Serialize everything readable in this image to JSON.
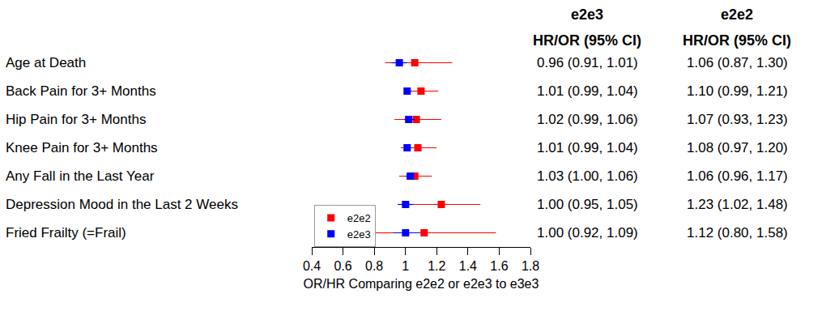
{
  "chart_data": {
    "type": "forest",
    "x_label": "OR/HR Comparing e2e2 or e2e3 to e3e3",
    "categories": [
      "Age at Death",
      "Back Pain for 3+ Months",
      "Hip Pain for 3+ Months",
      "Knee Pain for 3+ Months",
      "Any Fall in the Last Year",
      "Depression Mood in the Last 2 Weeks",
      "Fried Frailty (=Frail)"
    ],
    "series": [
      {
        "name": "e2e2",
        "color": "#ff0000",
        "marker": "square",
        "values": [
          1.06,
          1.1,
          1.07,
          1.08,
          1.06,
          1.23,
          1.12
        ],
        "lower": [
          0.87,
          0.99,
          0.93,
          0.97,
          0.96,
          1.02,
          0.8
        ],
        "upper": [
          1.3,
          1.21,
          1.23,
          1.2,
          1.17,
          1.48,
          1.58
        ],
        "value_labels": [
          "1.06 (0.87, 1.30)",
          "1.10 (0.99, 1.21)",
          "1.07 (0.93, 1.23)",
          "1.08 (0.97, 1.20)",
          "1.06 (0.96, 1.17)",
          "1.23 (1.02, 1.48)",
          "1.12 (0.80, 1.58)"
        ]
      },
      {
        "name": "e2e3",
        "color": "#0000ff",
        "marker": "square",
        "values": [
          0.96,
          1.01,
          1.02,
          1.01,
          1.03,
          1.0,
          1.0
        ],
        "lower": [
          0.91,
          0.99,
          0.99,
          0.99,
          1.0,
          0.95,
          0.92
        ],
        "upper": [
          1.01,
          1.04,
          1.06,
          1.04,
          1.06,
          1.05,
          1.09
        ],
        "value_labels": [
          "0.96 (0.91, 1.01)",
          "1.01 (0.99, 1.04)",
          "1.02 (0.99, 1.06)",
          "1.01 (0.99, 1.04)",
          "1.03 (1.00, 1.06)",
          "1.00 (0.95, 1.05)",
          "1.00 (0.92, 1.09)"
        ]
      }
    ],
    "table": {
      "columns": [
        {
          "series": "e2e3",
          "header": "HR/OR (95% CI)"
        },
        {
          "series": "e2e2",
          "header": "HR/OR (95% CI)"
        }
      ]
    },
    "xlim": [
      0.4,
      1.8
    ],
    "xticks": [
      0.4,
      0.6,
      0.8,
      1,
      1.2,
      1.4,
      1.6,
      1.8
    ],
    "legend": "bottom left",
    "grid": false
  }
}
